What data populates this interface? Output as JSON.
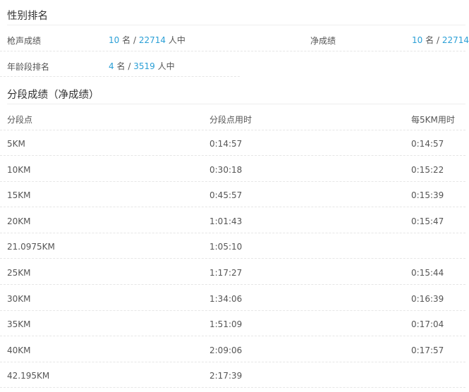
{
  "gender_rank": {
    "title": "性别排名",
    "gun_label": "枪声成绩",
    "gun_rank": "10",
    "gun_total": "22714",
    "net_label": "净成绩",
    "net_rank": "10",
    "net_total": "22714",
    "age_label": "年龄段排名",
    "age_rank": "4",
    "age_total": "3519",
    "rank_unit": "名",
    "sep": "/",
    "total_unit": "人中"
  },
  "splits": {
    "title": "分段成绩（净成绩）",
    "headers": [
      "分段点",
      "分段点用时",
      "每5KM用时"
    ],
    "rows": [
      [
        "5KM",
        "0:14:57",
        "0:14:57"
      ],
      [
        "10KM",
        "0:30:18",
        "0:15:22"
      ],
      [
        "15KM",
        "0:45:57",
        "0:15:39"
      ],
      [
        "20KM",
        "1:01:43",
        "0:15:47"
      ],
      [
        "21.0975KM",
        "1:05:10",
        ""
      ],
      [
        "25KM",
        "1:17:27",
        "0:15:44"
      ],
      [
        "30KM",
        "1:34:06",
        "0:16:39"
      ],
      [
        "35KM",
        "1:51:09",
        "0:17:04"
      ],
      [
        "40KM",
        "2:09:06",
        "0:17:57"
      ],
      [
        "42.195KM",
        "2:17:39",
        ""
      ]
    ]
  }
}
